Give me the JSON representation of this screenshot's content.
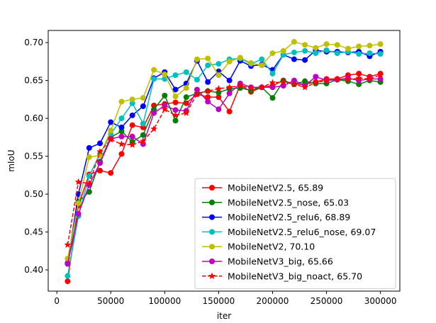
{
  "chart_data": {
    "type": "line",
    "xlabel": "iter",
    "ylabel": "mIoU",
    "xlim": [
      -8000,
      318000
    ],
    "ylim": [
      0.372,
      0.716
    ],
    "xticks": [
      0,
      50000,
      100000,
      150000,
      200000,
      250000,
      300000
    ],
    "yticks": [
      0.4,
      0.45,
      0.5,
      0.55,
      0.6,
      0.65,
      0.7
    ],
    "x": [
      10000,
      20000,
      30000,
      40000,
      50000,
      60000,
      70000,
      80000,
      90000,
      100000,
      110000,
      120000,
      130000,
      140000,
      150000,
      160000,
      170000,
      180000,
      190000,
      200000,
      210000,
      220000,
      230000,
      240000,
      250000,
      260000,
      270000,
      280000,
      290000,
      300000
    ],
    "legend_position": "lower-right",
    "series": [
      {
        "name": "MobileNetV2.5, 65.89",
        "color": "#ff0000",
        "style": "solid",
        "marker": "circle",
        "values": [
          0.385,
          0.485,
          0.526,
          0.531,
          0.528,
          0.553,
          0.591,
          0.588,
          0.617,
          0.619,
          0.621,
          0.62,
          0.632,
          0.628,
          0.628,
          0.609,
          0.644,
          0.635,
          0.641,
          0.643,
          0.65,
          0.645,
          0.645,
          0.648,
          0.652,
          0.652,
          0.657,
          0.659,
          0.655,
          0.659
        ]
      },
      {
        "name": "MobileNetV2.5_nose, 65.03",
        "color": "#008000",
        "style": "solid",
        "marker": "circle",
        "values": [
          0.408,
          0.49,
          0.503,
          0.543,
          0.575,
          0.583,
          0.569,
          0.578,
          0.612,
          0.63,
          0.597,
          0.628,
          0.633,
          0.636,
          0.634,
          0.639,
          0.64,
          0.637,
          0.641,
          0.627,
          0.649,
          0.645,
          0.649,
          0.646,
          0.646,
          0.651,
          0.649,
          0.645,
          0.65,
          0.648
        ]
      },
      {
        "name": "MobileNetV2.5_relu6, 68.89",
        "color": "#0000ff",
        "style": "solid",
        "marker": "circle",
        "values": [
          0.409,
          0.5,
          0.561,
          0.567,
          0.595,
          0.588,
          0.604,
          0.616,
          0.653,
          0.661,
          0.638,
          0.646,
          0.676,
          0.648,
          0.662,
          0.65,
          0.676,
          0.669,
          0.671,
          0.664,
          0.684,
          0.678,
          0.677,
          0.69,
          0.688,
          0.688,
          0.687,
          0.688,
          0.682,
          0.688
        ]
      },
      {
        "name": "MobileNetV2.5_relu6_nose, 69.07",
        "color": "#00bfbf",
        "style": "solid",
        "marker": "circle",
        "values": [
          0.392,
          0.471,
          0.524,
          0.553,
          0.579,
          0.6,
          0.62,
          0.593,
          0.652,
          0.652,
          0.657,
          0.661,
          0.651,
          0.67,
          0.672,
          0.678,
          0.679,
          0.672,
          0.678,
          0.659,
          0.684,
          0.687,
          0.689,
          0.686,
          0.69,
          0.686,
          0.688,
          0.685,
          0.686,
          0.685
        ]
      },
      {
        "name": "MobileNetV2, 70.10",
        "color": "#bfbf00",
        "style": "solid",
        "marker": "circle",
        "values": [
          0.415,
          0.488,
          0.549,
          0.551,
          0.584,
          0.622,
          0.625,
          0.627,
          0.664,
          0.658,
          0.629,
          0.64,
          0.678,
          0.679,
          0.657,
          0.675,
          0.68,
          0.673,
          0.67,
          0.686,
          0.689,
          0.701,
          0.697,
          0.693,
          0.698,
          0.697,
          0.692,
          0.695,
          0.696,
          0.698
        ]
      },
      {
        "name": "MobileNetV3_big, 65.66",
        "color": "#bf00bf",
        "style": "solid",
        "marker": "circle",
        "values": [
          0.408,
          0.474,
          0.512,
          0.541,
          0.573,
          0.576,
          0.576,
          0.566,
          0.607,
          0.617,
          0.611,
          0.61,
          0.638,
          0.622,
          0.612,
          0.633,
          0.646,
          0.641,
          0.641,
          0.641,
          0.643,
          0.65,
          0.643,
          0.655,
          0.65,
          0.651,
          0.653,
          0.65,
          0.652,
          0.652
        ]
      },
      {
        "name": "MobileNetV3_big_noact, 65.70",
        "color": "#ff0000",
        "style": "dashed",
        "marker": "star",
        "values": [
          0.433,
          0.516,
          0.514,
          0.556,
          0.572,
          0.566,
          0.565,
          0.57,
          0.586,
          0.612,
          0.604,
          0.607,
          0.632,
          0.636,
          0.639,
          0.641,
          0.643,
          0.64,
          0.641,
          0.647,
          0.648,
          0.645,
          0.641,
          0.647,
          0.65,
          0.652,
          0.651,
          0.653,
          0.652,
          0.657
        ]
      }
    ]
  }
}
